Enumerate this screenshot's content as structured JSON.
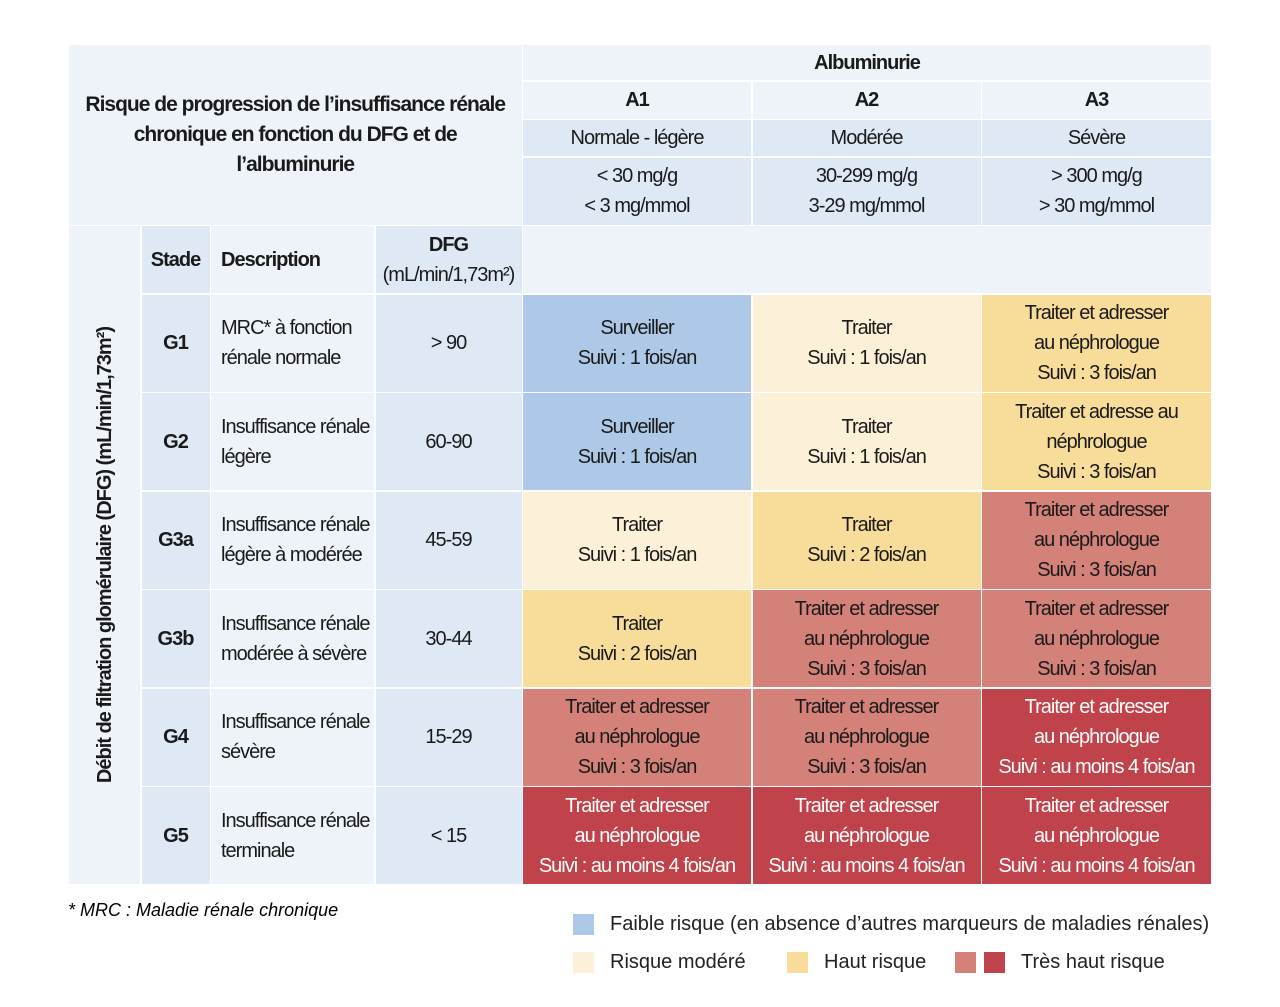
{
  "title": "Risque de progression de l’insuffisance rénale\nchronique en fonction du DFG et de l’albuminurie",
  "albuminurie": "Albuminurie",
  "categories": [
    {
      "code": "A1",
      "label": "Normale - légère",
      "range": "< 30 mg/g\n< 3 mg/mmol"
    },
    {
      "code": "A2",
      "label": "Modérée",
      "range": "30-299 mg/g\n3-29 mg/mmol"
    },
    {
      "code": "A3",
      "label": "Sévère",
      "range": "> 300 mg/g\n> 30 mg/mmol"
    }
  ],
  "side_label": "Débit de filtration glomérulaire (DFG) (mL/min/1,73m²)",
  "headers": {
    "stade": "Stade",
    "description": "Description",
    "dfg": "DFG",
    "dfg_unit": "(mL/min/1,73m²)"
  },
  "rows": [
    {
      "stade": "G1",
      "description": "MRC* à fonction\nrénale normale",
      "dfg": "> 90",
      "cells": [
        {
          "text": "Surveiller\nSuivi : 1 fois/an",
          "risk": "lo"
        },
        {
          "text": "Traiter\nSuivi : 1 fois/an",
          "risk": "mo"
        },
        {
          "text": "Traiter et adresser\nau néphrologue\nSuivi : 3 fois/an",
          "risk": "hi"
        }
      ]
    },
    {
      "stade": "G2",
      "description": "Insuffisance rénale\nlégère",
      "dfg": "60-90",
      "cells": [
        {
          "text": "Surveiller\nSuivi : 1 fois/an",
          "risk": "lo"
        },
        {
          "text": "Traiter\nSuivi : 1 fois/an",
          "risk": "mo"
        },
        {
          "text": "Traiter et adresse au\nnéphrologue\nSuivi : 3 fois/an",
          "risk": "hi"
        }
      ]
    },
    {
      "stade": "G3a",
      "description": "Insuffisance rénale\nlégère à modérée",
      "dfg": "45-59",
      "cells": [
        {
          "text": "Traiter\nSuivi : 1 fois/an",
          "risk": "mo"
        },
        {
          "text": "Traiter\nSuivi : 2 fois/an",
          "risk": "hi"
        },
        {
          "text": "Traiter et adresser\nau néphrologue\nSuivi : 3 fois/an",
          "risk": "vh1"
        }
      ]
    },
    {
      "stade": "G3b",
      "description": "Insuffisance rénale\nmodérée à sévère",
      "dfg": "30-44",
      "cells": [
        {
          "text": "Traiter\nSuivi : 2 fois/an",
          "risk": "hi"
        },
        {
          "text": "Traiter et adresser\nau néphrologue\nSuivi : 3 fois/an",
          "risk": "vh1"
        },
        {
          "text": "Traiter et adresser\nau néphrologue\nSuivi : 3 fois/an",
          "risk": "vh1"
        }
      ]
    },
    {
      "stade": "G4",
      "description": "Insuffisance rénale\nsévère",
      "dfg": "15-29",
      "cells": [
        {
          "text": "Traiter et adresser\nau néphrologue\nSuivi : 3 fois/an",
          "risk": "vh1"
        },
        {
          "text": "Traiter et adresser\nau néphrologue\nSuivi : 3 fois/an",
          "risk": "vh1"
        },
        {
          "text": "Traiter et adresser\nau néphrologue\nSuivi : au moins 4 fois/an",
          "risk": "vh2"
        }
      ]
    },
    {
      "stade": "G5",
      "description": "Insuffisance rénale\nterminale",
      "dfg": "< 15",
      "cells": [
        {
          "text": "Traiter et adresser\nau néphrologue\nSuivi : au moins 4 fois/an",
          "risk": "vh2"
        },
        {
          "text": "Traiter et adresser\nau néphrologue\nSuivi : au moins 4 fois/an",
          "risk": "vh2"
        },
        {
          "text": "Traiter et adresser\nau néphrologue\nSuivi : au moins 4 fois/an",
          "risk": "vh2"
        }
      ]
    }
  ],
  "footnote": "* MRC : Maladie rénale chronique",
  "legend": {
    "low": "Faible risque (en absence d’autres marqueurs de maladies rénales)",
    "moderate": "Risque modéré",
    "high": "Haut risque",
    "very_high": "Très haut risque"
  },
  "colors": {
    "low": "#aec8e8",
    "moderate": "#fcf1d8",
    "high": "#f8dd9a",
    "very_high_1": "#d4817a",
    "very_high_2": "#c0424a"
  }
}
